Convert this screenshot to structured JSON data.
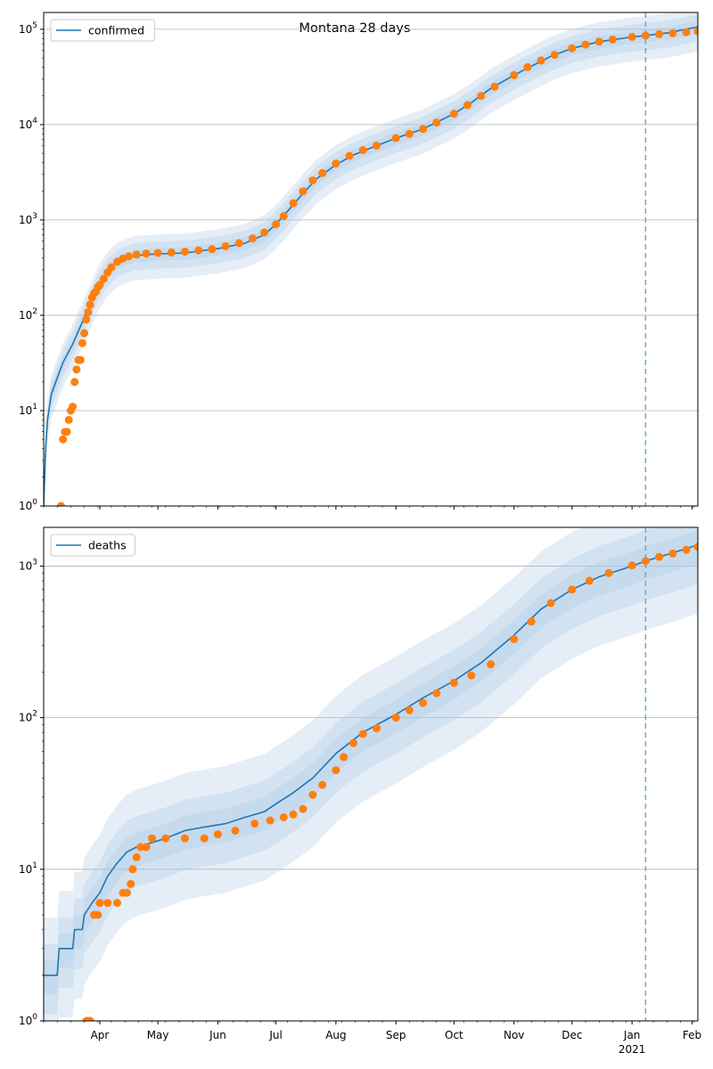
{
  "title": "Montana 28 days",
  "colors": {
    "model": "#1f77b4",
    "observed": "#ff7f0e",
    "band": "#a9c8e6",
    "grid": "#b0b0b0",
    "forecast_line": "#6fa8d0"
  },
  "x_axis": {
    "month_ticks": [
      {
        "label": "Apr",
        "date": "2020-04-01"
      },
      {
        "label": "May",
        "date": "2020-05-01"
      },
      {
        "label": "Jun",
        "date": "2020-06-01"
      },
      {
        "label": "Jul",
        "date": "2020-07-01"
      },
      {
        "label": "Aug",
        "date": "2020-08-01"
      },
      {
        "label": "Sep",
        "date": "2020-09-01"
      },
      {
        "label": "Oct",
        "date": "2020-10-01"
      },
      {
        "label": "Nov",
        "date": "2020-11-01"
      },
      {
        "label": "Dec",
        "date": "2020-12-01"
      },
      {
        "label": "Jan",
        "date": "2021-01-01"
      },
      {
        "label": "Feb",
        "date": "2021-02-01"
      }
    ],
    "year_label": "2021",
    "range": [
      "2020-03-03",
      "2021-02-04"
    ],
    "forecast_start": "2021-01-08"
  },
  "chart_data": [
    {
      "type": "line",
      "title": "Montana 28 days",
      "scale": "log",
      "ylim": [
        1,
        150000
      ],
      "grid": "y-major",
      "legend": {
        "position": "top-left",
        "label": "confirmed"
      },
      "ytick_labels": [
        {
          "value": 1,
          "base": "10",
          "exp": "0"
        },
        {
          "value": 10,
          "base": "10",
          "exp": "1"
        },
        {
          "value": 100,
          "base": "10",
          "exp": "2"
        },
        {
          "value": 1000,
          "base": "10",
          "exp": "3"
        },
        {
          "value": 10000,
          "base": "10",
          "exp": "4"
        },
        {
          "value": 100000,
          "base": "10",
          "exp": "5"
        }
      ],
      "model_series": [
        [
          "2020-03-03",
          1
        ],
        [
          "2020-03-04",
          4
        ],
        [
          "2020-03-05",
          8
        ],
        [
          "2020-03-07",
          15
        ],
        [
          "2020-03-10",
          22
        ],
        [
          "2020-03-13",
          32
        ],
        [
          "2020-03-18",
          50
        ],
        [
          "2020-03-23",
          85
        ],
        [
          "2020-03-27",
          130
        ],
        [
          "2020-03-31",
          200
        ],
        [
          "2020-04-05",
          290
        ],
        [
          "2020-04-10",
          360
        ],
        [
          "2020-04-15",
          400
        ],
        [
          "2020-04-20",
          425
        ],
        [
          "2020-05-01",
          440
        ],
        [
          "2020-05-15",
          450
        ],
        [
          "2020-06-01",
          500
        ],
        [
          "2020-06-15",
          570
        ],
        [
          "2020-06-25",
          700
        ],
        [
          "2020-07-01",
          900
        ],
        [
          "2020-07-08",
          1300
        ],
        [
          "2020-07-15",
          1900
        ],
        [
          "2020-07-22",
          2700
        ],
        [
          "2020-08-01",
          3800
        ],
        [
          "2020-08-10",
          4800
        ],
        [
          "2020-08-20",
          5800
        ],
        [
          "2020-09-01",
          7200
        ],
        [
          "2020-09-15",
          9000
        ],
        [
          "2020-10-01",
          13000
        ],
        [
          "2020-10-10",
          17000
        ],
        [
          "2020-10-20",
          24000
        ],
        [
          "2020-11-01",
          33000
        ],
        [
          "2020-11-10",
          41000
        ],
        [
          "2020-11-20",
          52000
        ],
        [
          "2020-12-01",
          63000
        ],
        [
          "2020-12-15",
          74000
        ],
        [
          "2021-01-01",
          83000
        ],
        [
          "2021-01-08",
          86000
        ],
        [
          "2021-01-20",
          92000
        ],
        [
          "2021-02-04",
          106000
        ]
      ],
      "bands": [
        {
          "lo": 0.55,
          "hi": 1.6
        },
        {
          "lo": 0.7,
          "hi": 1.35
        },
        {
          "lo": 0.85,
          "hi": 1.15
        }
      ],
      "observed": [
        [
          "2020-03-12",
          1
        ],
        [
          "2020-03-13",
          5
        ],
        [
          "2020-03-14",
          6
        ],
        [
          "2020-03-15",
          6
        ],
        [
          "2020-03-16",
          8
        ],
        [
          "2020-03-17",
          10
        ],
        [
          "2020-03-18",
          11
        ],
        [
          "2020-03-19",
          20
        ],
        [
          "2020-03-20",
          27
        ],
        [
          "2020-03-21",
          34
        ],
        [
          "2020-03-22",
          34
        ],
        [
          "2020-03-23",
          51
        ],
        [
          "2020-03-24",
          65
        ],
        [
          "2020-03-25",
          90
        ],
        [
          "2020-03-26",
          108
        ],
        [
          "2020-03-27",
          129
        ],
        [
          "2020-03-28",
          154
        ],
        [
          "2020-03-29",
          171
        ],
        [
          "2020-03-30",
          177
        ],
        [
          "2020-03-31",
          198
        ],
        [
          "2020-04-01",
          208
        ],
        [
          "2020-04-03",
          241
        ],
        [
          "2020-04-05",
          281
        ],
        [
          "2020-04-07",
          319
        ],
        [
          "2020-04-10",
          365
        ],
        [
          "2020-04-13",
          394
        ],
        [
          "2020-04-16",
          415
        ],
        [
          "2020-04-20",
          433
        ],
        [
          "2020-04-25",
          444
        ],
        [
          "2020-05-01",
          451
        ],
        [
          "2020-05-08",
          456
        ],
        [
          "2020-05-15",
          465
        ],
        [
          "2020-05-22",
          479
        ],
        [
          "2020-05-29",
          493
        ],
        [
          "2020-06-05",
          530
        ],
        [
          "2020-06-12",
          570
        ],
        [
          "2020-06-19",
          640
        ],
        [
          "2020-06-25",
          740
        ],
        [
          "2020-07-01",
          900
        ],
        [
          "2020-07-05",
          1100
        ],
        [
          "2020-07-10",
          1500
        ],
        [
          "2020-07-15",
          2000
        ],
        [
          "2020-07-20",
          2600
        ],
        [
          "2020-07-25",
          3100
        ],
        [
          "2020-08-01",
          3900
        ],
        [
          "2020-08-08",
          4700
        ],
        [
          "2020-08-15",
          5400
        ],
        [
          "2020-08-22",
          6000
        ],
        [
          "2020-09-01",
          7200
        ],
        [
          "2020-09-08",
          8000
        ],
        [
          "2020-09-15",
          9000
        ],
        [
          "2020-09-22",
          10500
        ],
        [
          "2020-10-01",
          13000
        ],
        [
          "2020-10-08",
          16000
        ],
        [
          "2020-10-15",
          20000
        ],
        [
          "2020-10-22",
          25000
        ],
        [
          "2020-11-01",
          33000
        ],
        [
          "2020-11-08",
          40000
        ],
        [
          "2020-11-15",
          47000
        ],
        [
          "2020-11-22",
          54000
        ],
        [
          "2020-12-01",
          63000
        ],
        [
          "2020-12-08",
          69000
        ],
        [
          "2020-12-15",
          74000
        ],
        [
          "2020-12-22",
          78000
        ],
        [
          "2021-01-01",
          83000
        ],
        [
          "2021-01-08",
          86000
        ],
        [
          "2021-01-15",
          89000
        ],
        [
          "2021-01-22",
          91000
        ],
        [
          "2021-01-29",
          93000
        ],
        [
          "2021-02-04",
          95000
        ]
      ]
    },
    {
      "type": "line",
      "scale": "log",
      "ylim": [
        1,
        1800
      ],
      "grid": "y-major",
      "legend": {
        "position": "top-left",
        "label": "deaths"
      },
      "ytick_labels": [
        {
          "value": 1,
          "base": "10",
          "exp": "0"
        },
        {
          "value": 10,
          "base": "10",
          "exp": "1"
        },
        {
          "value": 100,
          "base": "10",
          "exp": "2"
        },
        {
          "value": 1000,
          "base": "10",
          "exp": "3"
        }
      ],
      "model_series": [
        [
          "2020-03-03",
          2
        ],
        [
          "2020-03-10",
          2
        ],
        [
          "2020-03-11",
          3
        ],
        [
          "2020-03-18",
          3
        ],
        [
          "2020-03-19",
          4
        ],
        [
          "2020-03-23",
          4
        ],
        [
          "2020-03-24",
          5
        ],
        [
          "2020-03-28",
          6
        ],
        [
          "2020-04-01",
          7
        ],
        [
          "2020-04-05",
          9
        ],
        [
          "2020-04-10",
          11
        ],
        [
          "2020-04-15",
          13
        ],
        [
          "2020-04-20",
          14
        ],
        [
          "2020-04-28",
          15
        ],
        [
          "2020-05-05",
          16
        ],
        [
          "2020-05-15",
          18
        ],
        [
          "2020-05-25",
          19
        ],
        [
          "2020-06-05",
          20
        ],
        [
          "2020-06-15",
          22
        ],
        [
          "2020-06-25",
          24
        ],
        [
          "2020-07-01",
          27
        ],
        [
          "2020-07-10",
          32
        ],
        [
          "2020-07-20",
          40
        ],
        [
          "2020-08-01",
          58
        ],
        [
          "2020-08-15",
          80
        ],
        [
          "2020-09-01",
          105
        ],
        [
          "2020-09-15",
          135
        ],
        [
          "2020-10-01",
          175
        ],
        [
          "2020-10-15",
          230
        ],
        [
          "2020-11-01",
          350
        ],
        [
          "2020-11-15",
          520
        ],
        [
          "2020-12-01",
          700
        ],
        [
          "2020-12-15",
          850
        ],
        [
          "2021-01-01",
          1000
        ],
        [
          "2021-01-08",
          1080
        ],
        [
          "2021-01-20",
          1200
        ],
        [
          "2021-02-04",
          1380
        ]
      ],
      "bands": [
        {
          "lo": 0.35,
          "hi": 2.4
        },
        {
          "lo": 0.55,
          "hi": 1.6
        },
        {
          "lo": 0.75,
          "hi": 1.25
        }
      ],
      "observed": [
        [
          "2020-03-25",
          1
        ],
        [
          "2020-03-26",
          1
        ],
        [
          "2020-03-27",
          1
        ],
        [
          "2020-03-29",
          5
        ],
        [
          "2020-03-31",
          5
        ],
        [
          "2020-04-01",
          6
        ],
        [
          "2020-04-05",
          6
        ],
        [
          "2020-04-10",
          6
        ],
        [
          "2020-04-13",
          7
        ],
        [
          "2020-04-15",
          7
        ],
        [
          "2020-04-17",
          8
        ],
        [
          "2020-04-18",
          10
        ],
        [
          "2020-04-20",
          12
        ],
        [
          "2020-04-22",
          14
        ],
        [
          "2020-04-25",
          14
        ],
        [
          "2020-04-28",
          16
        ],
        [
          "2020-05-05",
          16
        ],
        [
          "2020-05-15",
          16
        ],
        [
          "2020-05-25",
          16
        ],
        [
          "2020-06-01",
          17
        ],
        [
          "2020-06-10",
          18
        ],
        [
          "2020-06-20",
          20
        ],
        [
          "2020-06-28",
          21
        ],
        [
          "2020-07-05",
          22
        ],
        [
          "2020-07-10",
          23
        ],
        [
          "2020-07-15",
          25
        ],
        [
          "2020-07-20",
          31
        ],
        [
          "2020-07-25",
          36
        ],
        [
          "2020-08-01",
          45
        ],
        [
          "2020-08-05",
          55
        ],
        [
          "2020-08-10",
          68
        ],
        [
          "2020-08-15",
          78
        ],
        [
          "2020-08-22",
          85
        ],
        [
          "2020-09-01",
          100
        ],
        [
          "2020-09-08",
          112
        ],
        [
          "2020-09-15",
          125
        ],
        [
          "2020-09-22",
          145
        ],
        [
          "2020-10-01",
          170
        ],
        [
          "2020-10-10",
          190
        ],
        [
          "2020-10-20",
          225
        ],
        [
          "2020-11-01",
          330
        ],
        [
          "2020-11-10",
          430
        ],
        [
          "2020-11-20",
          570
        ],
        [
          "2020-12-01",
          700
        ],
        [
          "2020-12-10",
          800
        ],
        [
          "2020-12-20",
          900
        ],
        [
          "2021-01-01",
          1010
        ],
        [
          "2021-01-08",
          1080
        ],
        [
          "2021-01-15",
          1150
        ],
        [
          "2021-01-22",
          1210
        ],
        [
          "2021-01-29",
          1280
        ],
        [
          "2021-02-04",
          1340
        ]
      ]
    }
  ]
}
